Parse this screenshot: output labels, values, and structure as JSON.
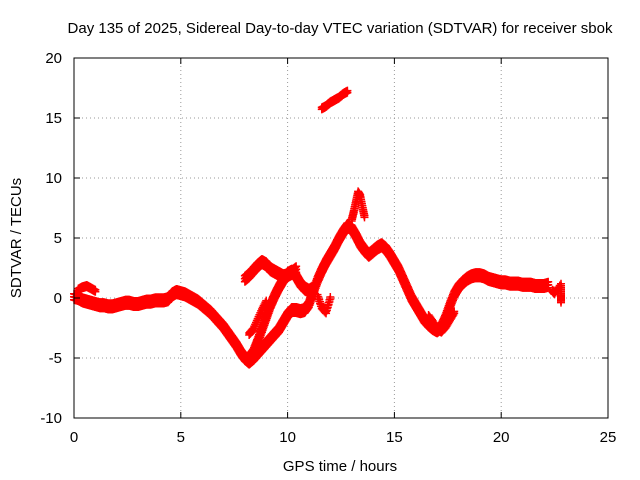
{
  "chart_data": {
    "type": "scatter",
    "title": "Day 135 of 2025, Sidereal Day-to-day VTEC variation (SDTVAR) for receiver sbok",
    "xlabel": "GPS time / hours",
    "ylabel": "SDTVAR / TECUs",
    "xlim": [
      0,
      25
    ],
    "ylim": [
      -10,
      20
    ],
    "xticks": [
      0,
      5,
      10,
      15,
      20,
      25
    ],
    "yticks": [
      -10,
      -5,
      0,
      5,
      10,
      15,
      20
    ],
    "xtick_labels": [
      "0",
      "5",
      "10",
      "15",
      "20",
      "25"
    ],
    "ytick_labels": [
      "-10",
      "-5",
      "0",
      "5",
      "10",
      "15",
      "20"
    ],
    "grid": true,
    "marker": "+",
    "color": "#ff0000",
    "series": [
      {
        "name": "main-track",
        "x": [
          0,
          0.2,
          0.4,
          0.6,
          0.8,
          1.0,
          1.2,
          1.4,
          1.6,
          1.8,
          2.0,
          2.2,
          2.4,
          2.6,
          2.8,
          3.0,
          3.2,
          3.4,
          3.6,
          3.8,
          4.0,
          4.2,
          4.4,
          4.6,
          4.8,
          5.0,
          5.2,
          5.4,
          5.6,
          5.8,
          6.0,
          6.2,
          6.4,
          6.6,
          6.8,
          7.0,
          7.2,
          7.4,
          7.6,
          7.8,
          8.0,
          8.2,
          8.4,
          8.6,
          8.8,
          9.0,
          9.2,
          9.4,
          9.6,
          9.8,
          10.0,
          10.2,
          10.4,
          10.6,
          10.8,
          11.0,
          11.2,
          11.4,
          11.6,
          11.8,
          12.0,
          12.2,
          12.4,
          12.6,
          12.8,
          13.0,
          13.2,
          13.4,
          13.6,
          13.8,
          14.0,
          14.2,
          14.4,
          14.6,
          14.8,
          15.0,
          15.2,
          15.4,
          15.6,
          15.8,
          16.0,
          16.2,
          16.4,
          16.6,
          16.8,
          17.0,
          17.2,
          17.4,
          17.6,
          17.8,
          18.0,
          18.2,
          18.4,
          18.6,
          18.8,
          19.0,
          19.2,
          19.4,
          19.6,
          19.8,
          20.0,
          20.2,
          20.4,
          20.6,
          20.8,
          21.0,
          21.2,
          21.4,
          21.6,
          21.8,
          22.0,
          22.2
        ],
        "y": [
          0.1,
          0.0,
          -0.2,
          -0.3,
          -0.4,
          -0.5,
          -0.6,
          -0.6,
          -0.7,
          -0.7,
          -0.6,
          -0.5,
          -0.4,
          -0.4,
          -0.5,
          -0.5,
          -0.4,
          -0.3,
          -0.3,
          -0.2,
          -0.2,
          -0.2,
          -0.1,
          0.3,
          0.5,
          0.4,
          0.3,
          0.1,
          -0.1,
          -0.3,
          -0.6,
          -0.9,
          -1.2,
          -1.6,
          -2.0,
          -2.4,
          -2.9,
          -3.4,
          -3.9,
          -4.5,
          -5.0,
          -5.3,
          -5.0,
          -4.6,
          -4.2,
          -3.8,
          -3.4,
          -3.0,
          -2.6,
          -2.0,
          -1.4,
          -1.0,
          -1.0,
          -1.1,
          -1.0,
          -0.5,
          0.5,
          1.5,
          2.3,
          3.0,
          3.6,
          4.2,
          4.9,
          5.5,
          6.0,
          5.8,
          5.2,
          4.5,
          4.0,
          3.6,
          3.9,
          4.2,
          4.4,
          4.1,
          3.6,
          3.0,
          2.4,
          1.6,
          0.8,
          0.0,
          -0.6,
          -1.2,
          -1.8,
          -2.2,
          -2.5,
          -2.7,
          -2.4,
          -1.6,
          -0.6,
          0.3,
          0.9,
          1.3,
          1.6,
          1.8,
          1.9,
          1.9,
          1.8,
          1.6,
          1.5,
          1.4,
          1.3,
          1.3,
          1.2,
          1.2,
          1.2,
          1.1,
          1.1,
          1.1,
          1.0,
          1.0,
          1.0,
          1.1
        ]
      },
      {
        "name": "early-bump",
        "x": [
          0.2,
          0.4,
          0.6,
          0.8,
          1.0
        ],
        "y": [
          0.7,
          0.9,
          1.0,
          0.8,
          0.6
        ]
      },
      {
        "name": "late-tail",
        "x": [
          22.4,
          22.5,
          22.8,
          22.8,
          22.8
        ],
        "y": [
          0.6,
          0.4,
          1.1,
          0.3,
          -0.3
        ]
      },
      {
        "name": "rising-arc",
        "x": [
          8.2,
          8.4,
          8.6,
          8.8,
          9.0,
          9.2,
          9.4,
          9.6,
          9.8,
          10.0,
          10.2,
          10.4,
          10.6,
          10.8,
          11.0,
          11.2
        ],
        "y": [
          -5.0,
          -4.5,
          -3.6,
          -2.6,
          -1.6,
          -0.6,
          0.2,
          0.9,
          1.5,
          2.0,
          2.2,
          1.8,
          1.2,
          0.8,
          0.6,
          0.8
        ]
      },
      {
        "name": "mid-cluster",
        "x": [
          8.0,
          8.2,
          8.4,
          8.6,
          8.8,
          9.0,
          9.2,
          9.4,
          9.6,
          9.8,
          10.0,
          10.2,
          10.4
        ],
        "y": [
          1.6,
          1.9,
          2.3,
          2.7,
          3.0,
          2.8,
          2.4,
          2.2,
          2.0,
          1.8,
          1.9,
          2.1,
          2.4
        ]
      },
      {
        "name": "steep-segment",
        "x": [
          8.2,
          8.4,
          8.6,
          8.8,
          9.0
        ],
        "y": [
          -3.0,
          -2.6,
          -1.8,
          -1.0,
          -0.3
        ]
      },
      {
        "name": "spike-cluster",
        "x": [
          13.0,
          13.1,
          13.2,
          13.3,
          13.4,
          13.5,
          13.6
        ],
        "y": [
          6.5,
          7.2,
          8.0,
          8.8,
          8.5,
          7.6,
          6.8
        ]
      },
      {
        "name": "upper-cluster",
        "x": [
          11.6,
          11.8,
          12.0,
          12.2,
          12.4,
          12.6,
          12.8
        ],
        "y": [
          15.8,
          16.0,
          16.3,
          16.5,
          16.7,
          17.0,
          17.2
        ]
      },
      {
        "name": "lower-dip",
        "x": [
          16.6,
          16.8,
          17.0,
          17.2,
          17.4,
          17.6,
          17.8
        ],
        "y": [
          -1.5,
          -2.0,
          -2.6,
          -2.8,
          -2.4,
          -1.8,
          -1.2
        ]
      },
      {
        "name": "lower-spur",
        "x": [
          11.4,
          11.6,
          11.8,
          12.0
        ],
        "y": [
          0.2,
          -0.8,
          -1.2,
          0.0
        ]
      }
    ]
  }
}
